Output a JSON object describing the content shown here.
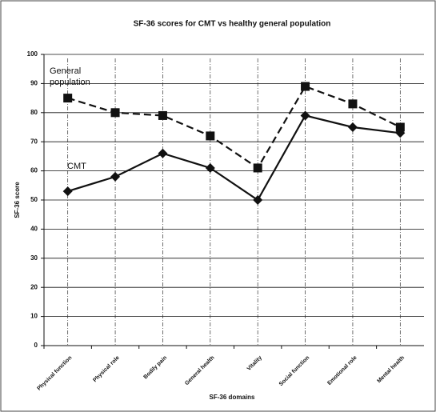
{
  "chart_data": {
    "type": "line",
    "title": "SF-36 scores for CMT vs healthy general population",
    "x_label": "SF-36 domains",
    "y_label": "SF-36 score",
    "categories": [
      "Physical function",
      "Physical role",
      "Bodily pain",
      "General health",
      "Vitality",
      "Social function",
      "Emotional role",
      "Mental health"
    ],
    "series": [
      {
        "name": "General population",
        "color": "#111111",
        "dashed": true,
        "marker": "square",
        "values": [
          85,
          80,
          79,
          72,
          61,
          89,
          83,
          75
        ]
      },
      {
        "name": "CMT",
        "color": "#111111",
        "dashed": false,
        "marker": "diamond",
        "values": [
          53,
          58,
          66,
          61,
          50,
          79,
          75,
          73
        ]
      }
    ],
    "ylim": [
      0,
      100
    ],
    "yticks": [
      0,
      10,
      20,
      30,
      40,
      50,
      60,
      70,
      80,
      90,
      100
    ],
    "grid": true
  }
}
